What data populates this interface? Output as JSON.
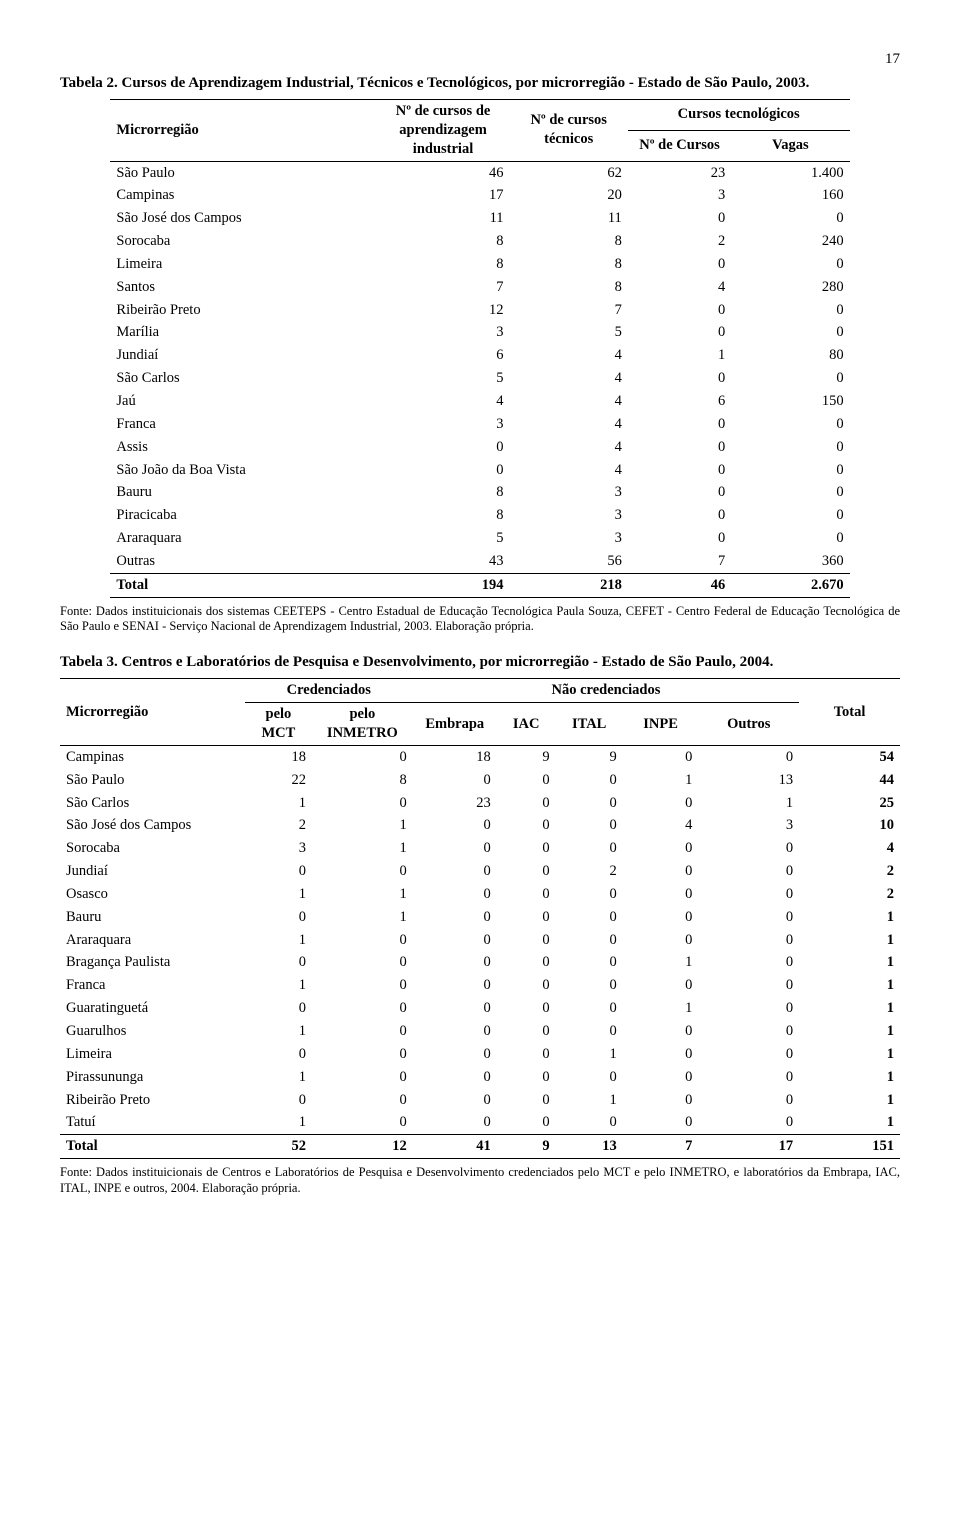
{
  "page_number": "17",
  "table1": {
    "type": "table",
    "title": "Tabela 2.   Cursos de Aprendizagem Industrial, Técnicos e Tecnológicos, por microrregião - Estado de São Paulo, 2003.",
    "header": {
      "col1": "Microrregião",
      "col2": "Nº de cursos de aprendizagem industrial",
      "col3": "Nº de cursos técnicos",
      "col4_group": "Cursos tecnológicos",
      "col4a": "Nº de Cursos",
      "col4b": "Vagas"
    },
    "rows": [
      {
        "region": "São Paulo",
        "c1": "46",
        "c2": "62",
        "c3": "23",
        "c4": "1.400"
      },
      {
        "region": "Campinas",
        "c1": "17",
        "c2": "20",
        "c3": "3",
        "c4": "160"
      },
      {
        "region": "São José dos Campos",
        "c1": "11",
        "c2": "11",
        "c3": "0",
        "c4": "0"
      },
      {
        "region": "Sorocaba",
        "c1": "8",
        "c2": "8",
        "c3": "2",
        "c4": "240"
      },
      {
        "region": "Limeira",
        "c1": "8",
        "c2": "8",
        "c3": "0",
        "c4": "0"
      },
      {
        "region": "Santos",
        "c1": "7",
        "c2": "8",
        "c3": "4",
        "c4": "280"
      },
      {
        "region": "Ribeirão Preto",
        "c1": "12",
        "c2": "7",
        "c3": "0",
        "c4": "0"
      },
      {
        "region": "Marília",
        "c1": "3",
        "c2": "5",
        "c3": "0",
        "c4": "0"
      },
      {
        "region": "Jundiaí",
        "c1": "6",
        "c2": "4",
        "c3": "1",
        "c4": "80"
      },
      {
        "region": "São Carlos",
        "c1": "5",
        "c2": "4",
        "c3": "0",
        "c4": "0"
      },
      {
        "region": "Jaú",
        "c1": "4",
        "c2": "4",
        "c3": "6",
        "c4": "150"
      },
      {
        "region": "Franca",
        "c1": "3",
        "c2": "4",
        "c3": "0",
        "c4": "0"
      },
      {
        "region": "Assis",
        "c1": "0",
        "c2": "4",
        "c3": "0",
        "c4": "0"
      },
      {
        "region": "São João da Boa Vista",
        "c1": "0",
        "c2": "4",
        "c3": "0",
        "c4": "0"
      },
      {
        "region": "Bauru",
        "c1": "8",
        "c2": "3",
        "c3": "0",
        "c4": "0"
      },
      {
        "region": "Piracicaba",
        "c1": "8",
        "c2": "3",
        "c3": "0",
        "c4": "0"
      },
      {
        "region": "Araraquara",
        "c1": "5",
        "c2": "3",
        "c3": "0",
        "c4": "0"
      },
      {
        "region": "Outras",
        "c1": "43",
        "c2": "56",
        "c3": "7",
        "c4": "360"
      }
    ],
    "total": {
      "label": "Total",
      "c1": "194",
      "c2": "218",
      "c3": "46",
      "c4": "2.670"
    },
    "source": "Fonte: Dados instituicionais dos sistemas CEETEPS - Centro Estadual de Educação Tecnológica Paula Souza, CEFET - Centro Federal de Educação Tecnológica de São Paulo e SENAI - Serviço Nacional de Aprendizagem Industrial, 2003. Elaboração própria."
  },
  "table2": {
    "type": "table",
    "title": "Tabela 3. Centros e Laboratórios de Pesquisa e Desenvolvimento, por microrregião - Estado de São Paulo, 2004.",
    "header": {
      "col1": "Microrregião",
      "groupA": "Credenciados",
      "groupB": "Não credenciados",
      "a1": "pelo MCT",
      "a2": "pelo INMETRO",
      "b1": "Embrapa",
      "b2": "IAC",
      "b3": "ITAL",
      "b4": "INPE",
      "b5": "Outros",
      "total": "Total"
    },
    "rows": [
      {
        "region": "Campinas",
        "v": [
          "18",
          "0",
          "18",
          "9",
          "9",
          "0",
          "0",
          "54"
        ]
      },
      {
        "region": "São Paulo",
        "v": [
          "22",
          "8",
          "0",
          "0",
          "0",
          "1",
          "13",
          "44"
        ]
      },
      {
        "region": "São Carlos",
        "v": [
          "1",
          "0",
          "23",
          "0",
          "0",
          "0",
          "1",
          "25"
        ]
      },
      {
        "region": "São José dos Campos",
        "v": [
          "2",
          "1",
          "0",
          "0",
          "0",
          "4",
          "3",
          "10"
        ]
      },
      {
        "region": "Sorocaba",
        "v": [
          "3",
          "1",
          "0",
          "0",
          "0",
          "0",
          "0",
          "4"
        ]
      },
      {
        "region": "Jundiaí",
        "v": [
          "0",
          "0",
          "0",
          "0",
          "2",
          "0",
          "0",
          "2"
        ]
      },
      {
        "region": "Osasco",
        "v": [
          "1",
          "1",
          "0",
          "0",
          "0",
          "0",
          "0",
          "2"
        ]
      },
      {
        "region": "Bauru",
        "v": [
          "0",
          "1",
          "0",
          "0",
          "0",
          "0",
          "0",
          "1"
        ]
      },
      {
        "region": "Araraquara",
        "v": [
          "1",
          "0",
          "0",
          "0",
          "0",
          "0",
          "0",
          "1"
        ]
      },
      {
        "region": "Bragança Paulista",
        "v": [
          "0",
          "0",
          "0",
          "0",
          "0",
          "1",
          "0",
          "1"
        ]
      },
      {
        "region": "Franca",
        "v": [
          "1",
          "0",
          "0",
          "0",
          "0",
          "0",
          "0",
          "1"
        ]
      },
      {
        "region": "Guaratinguetá",
        "v": [
          "0",
          "0",
          "0",
          "0",
          "0",
          "1",
          "0",
          "1"
        ]
      },
      {
        "region": "Guarulhos",
        "v": [
          "1",
          "0",
          "0",
          "0",
          "0",
          "0",
          "0",
          "1"
        ]
      },
      {
        "region": "Limeira",
        "v": [
          "0",
          "0",
          "0",
          "0",
          "1",
          "0",
          "0",
          "1"
        ]
      },
      {
        "region": "Pirassununga",
        "v": [
          "1",
          "0",
          "0",
          "0",
          "0",
          "0",
          "0",
          "1"
        ]
      },
      {
        "region": "Ribeirão Preto",
        "v": [
          "0",
          "0",
          "0",
          "0",
          "1",
          "0",
          "0",
          "1"
        ]
      },
      {
        "region": "Tatuí",
        "v": [
          "1",
          "0",
          "0",
          "0",
          "0",
          "0",
          "0",
          "1"
        ]
      }
    ],
    "total": {
      "label": "Total",
      "v": [
        "52",
        "12",
        "41",
        "9",
        "13",
        "7",
        "17",
        "151"
      ]
    },
    "source": "Fonte: Dados instituicionais de Centros e Laboratórios de Pesquisa e Desenvolvimento credenciados pelo MCT e pelo INMETRO, e laboratórios da Embrapa, IAC, ITAL, INPE e outros, 2004. Elaboração própria."
  }
}
